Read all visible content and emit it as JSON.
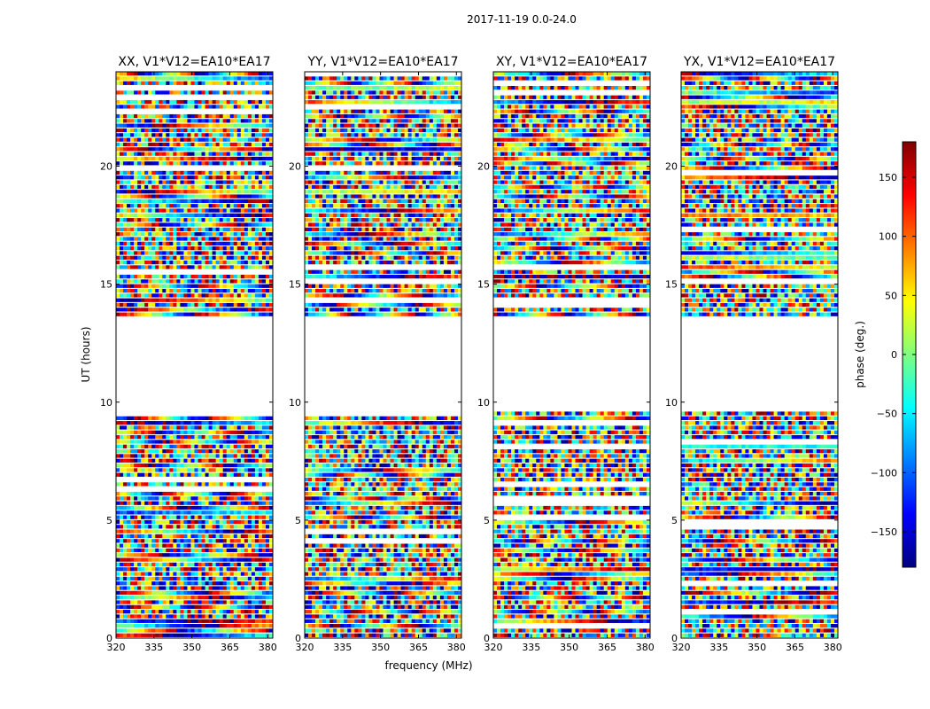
{
  "chart_data": {
    "type": "heatmap",
    "suptitle": "2017-11-19 0.0-24.0",
    "xlabel": "frequency (MHz)",
    "ylabel": "UT (hours)",
    "xlim": [
      320,
      382
    ],
    "ylim": [
      0,
      24
    ],
    "xticks": [
      320,
      335,
      350,
      365,
      380
    ],
    "xtick_labels": [
      "320",
      "335",
      "350",
      "365",
      "380"
    ],
    "yticks": [
      0,
      5,
      10,
      15,
      20
    ],
    "ytick_labels": [
      "0",
      "5",
      "10",
      "15",
      "20"
    ],
    "panels": [
      {
        "title": "XX, V1*V12=EA10*EA17",
        "polarization": "XX"
      },
      {
        "title": "YY, V1*V12=EA10*EA17",
        "polarization": "YY"
      },
      {
        "title": "XY, V1*V12=EA10*EA17",
        "polarization": "XY"
      },
      {
        "title": "YX, V1*V12=EA10*EA17",
        "polarization": "YX"
      }
    ],
    "data_gaps_hours": [
      [
        9.6,
        13.6
      ]
    ],
    "data_blocks_hours": [
      [
        0,
        1.5
      ],
      [
        1.5,
        5.7
      ],
      [
        5.7,
        9.6
      ],
      [
        13.6,
        15.3
      ],
      [
        15.3,
        24
      ]
    ],
    "colorbar": {
      "label": "phase (deg.)",
      "range": [
        -180,
        180
      ],
      "ticks": [
        150,
        100,
        50,
        0,
        -50,
        -100,
        -150
      ],
      "tick_labels": [
        "150",
        "100",
        "50",
        "0",
        "−50",
        "−100",
        "−150"
      ],
      "colormap": "jet",
      "colors": [
        "#00007f",
        "#0000ff",
        "#007fff",
        "#00ffff",
        "#7fff7f",
        "#ffff00",
        "#ff7f00",
        "#ff0000",
        "#7f0000"
      ]
    }
  }
}
